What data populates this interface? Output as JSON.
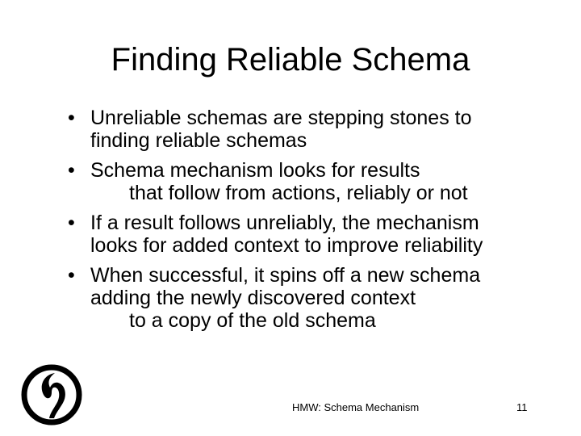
{
  "slide": {
    "title": "Finding Reliable Schema",
    "bullet_glyph": "•",
    "bullets": [
      {
        "lines": [
          "Unreliable schemas are stepping stones to",
          "finding reliable schemas"
        ]
      },
      {
        "lines": [
          "Schema mechanism looks for results",
          "that follow from actions, reliably or not"
        ]
      },
      {
        "lines": [
          "If a result follows unreliably, the mechanism",
          "looks for added context to improve reliability"
        ]
      },
      {
        "lines": [
          "When successful, it spins off a new schema",
          "adding the newly discovered context",
          "to a copy of the old schema"
        ]
      }
    ]
  },
  "footer": {
    "text": "HMW: Schema Mechanism",
    "page_number": "11"
  },
  "logo": {
    "icon": "hmw-logo-icon",
    "color": "#000000"
  }
}
